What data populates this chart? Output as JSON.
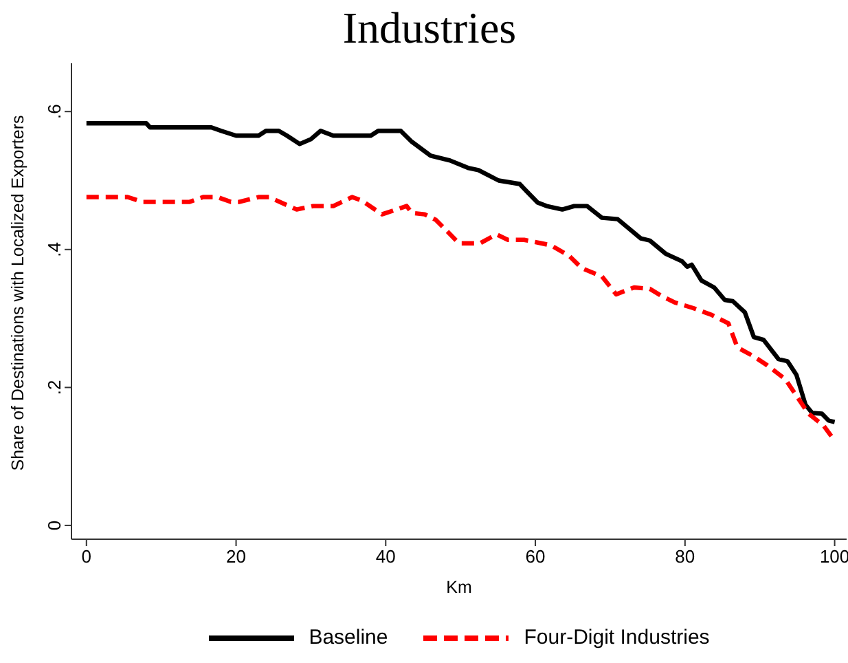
{
  "chart_data": {
    "type": "line",
    "title": "Industries",
    "xlabel": "Km",
    "ylabel": "Share of Destinations with Localized Exporters",
    "xlim": [
      -2,
      101.6
    ],
    "xticks": [
      0,
      20,
      40,
      60,
      80,
      100
    ],
    "ylim": [
      -0.02,
      0.67
    ],
    "yticks": [
      0,
      {
        "value": 0.2,
        "label": ".2"
      },
      {
        "value": 0.4,
        "label": ".4"
      },
      {
        "value": 0.6,
        "label": ".6"
      }
    ],
    "legend": "bottom",
    "series": [
      {
        "name": "Baseline",
        "color": "#000000",
        "line_style": "solid",
        "x": [
          0,
          8,
          8.5,
          16.7,
          18,
          20,
          23,
          24,
          25.7,
          26.8,
          28.5,
          30,
          31.3,
          33,
          38,
          39,
          42,
          43.4,
          46,
          48.6,
          51.1,
          52.4,
          55.1,
          57.9,
          60.3,
          61.5,
          63.6,
          65.2,
          66.9,
          68.9,
          71,
          74.1,
          75.3,
          77.4,
          79.6,
          80.3,
          80.9,
          82.2,
          83.9,
          85.3,
          86.4,
          88,
          89.2,
          90.5,
          92.5,
          93.7,
          94.9,
          96.1,
          97,
          98.3,
          99.2,
          100
        ],
        "values": [
          0.583,
          0.583,
          0.577,
          0.577,
          0.572,
          0.565,
          0.565,
          0.572,
          0.572,
          0.565,
          0.553,
          0.56,
          0.572,
          0.565,
          0.565,
          0.572,
          0.572,
          0.557,
          0.536,
          0.529,
          0.518,
          0.515,
          0.5,
          0.495,
          0.468,
          0.463,
          0.458,
          0.463,
          0.463,
          0.446,
          0.444,
          0.416,
          0.413,
          0.394,
          0.383,
          0.375,
          0.378,
          0.355,
          0.345,
          0.327,
          0.325,
          0.309,
          0.273,
          0.269,
          0.241,
          0.238,
          0.218,
          0.175,
          0.163,
          0.162,
          0.152,
          0.15
        ]
      },
      {
        "name": "Four-Digit Industries",
        "color": "#ff0000",
        "line_style": "dashed",
        "x": [
          0,
          5.5,
          7.5,
          13.8,
          15.6,
          17.5,
          19.3,
          20.4,
          23,
          24.4,
          28.1,
          30.3,
          33,
          35.5,
          36.8,
          39.5,
          42.8,
          43.5,
          45.2,
          46.7,
          49.8,
          52.6,
          54.8,
          56.3,
          58.5,
          60.8,
          62.1,
          64.5,
          66.2,
          68.9,
          70.8,
          73.2,
          75.3,
          76.8,
          78.7,
          81.1,
          83.6,
          85.8,
          87,
          89.2,
          91,
          93.4,
          95.2,
          96.5,
          98.5,
          100
        ],
        "values": [
          0.476,
          0.476,
          0.469,
          0.469,
          0.476,
          0.476,
          0.469,
          0.469,
          0.476,
          0.476,
          0.458,
          0.463,
          0.463,
          0.476,
          0.471,
          0.451,
          0.463,
          0.453,
          0.451,
          0.443,
          0.409,
          0.409,
          0.422,
          0.414,
          0.414,
          0.409,
          0.406,
          0.391,
          0.373,
          0.361,
          0.335,
          0.345,
          0.343,
          0.333,
          0.323,
          0.315,
          0.305,
          0.293,
          0.258,
          0.245,
          0.232,
          0.212,
          0.183,
          0.162,
          0.145,
          0.123
        ]
      }
    ]
  }
}
